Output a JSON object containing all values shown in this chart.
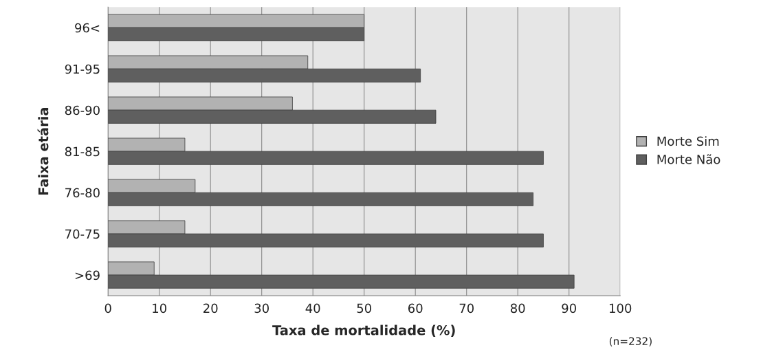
{
  "chart_data": {
    "type": "bar",
    "orientation": "horizontal",
    "categories": [
      "96<",
      "91-95",
      "86-90",
      "81-85",
      "76-80",
      "70-75",
      ">69"
    ],
    "series": [
      {
        "name": "Morte Sim",
        "color": "#b2b2b2",
        "values": [
          50,
          39,
          36,
          15,
          17,
          15,
          9
        ]
      },
      {
        "name": "Morte Não",
        "color": "#5f5f5f",
        "values": [
          50,
          61,
          64,
          85,
          83,
          85,
          91
        ]
      }
    ],
    "xlabel": "Taxa de mortalidade (%)",
    "ylabel": "Faixa etária",
    "xlim": [
      0,
      100
    ],
    "xticks": [
      0,
      10,
      20,
      30,
      40,
      50,
      60,
      70,
      80,
      90,
      100
    ],
    "grid": "x",
    "legend": "right",
    "annotations": [
      "(n=232)"
    ]
  }
}
